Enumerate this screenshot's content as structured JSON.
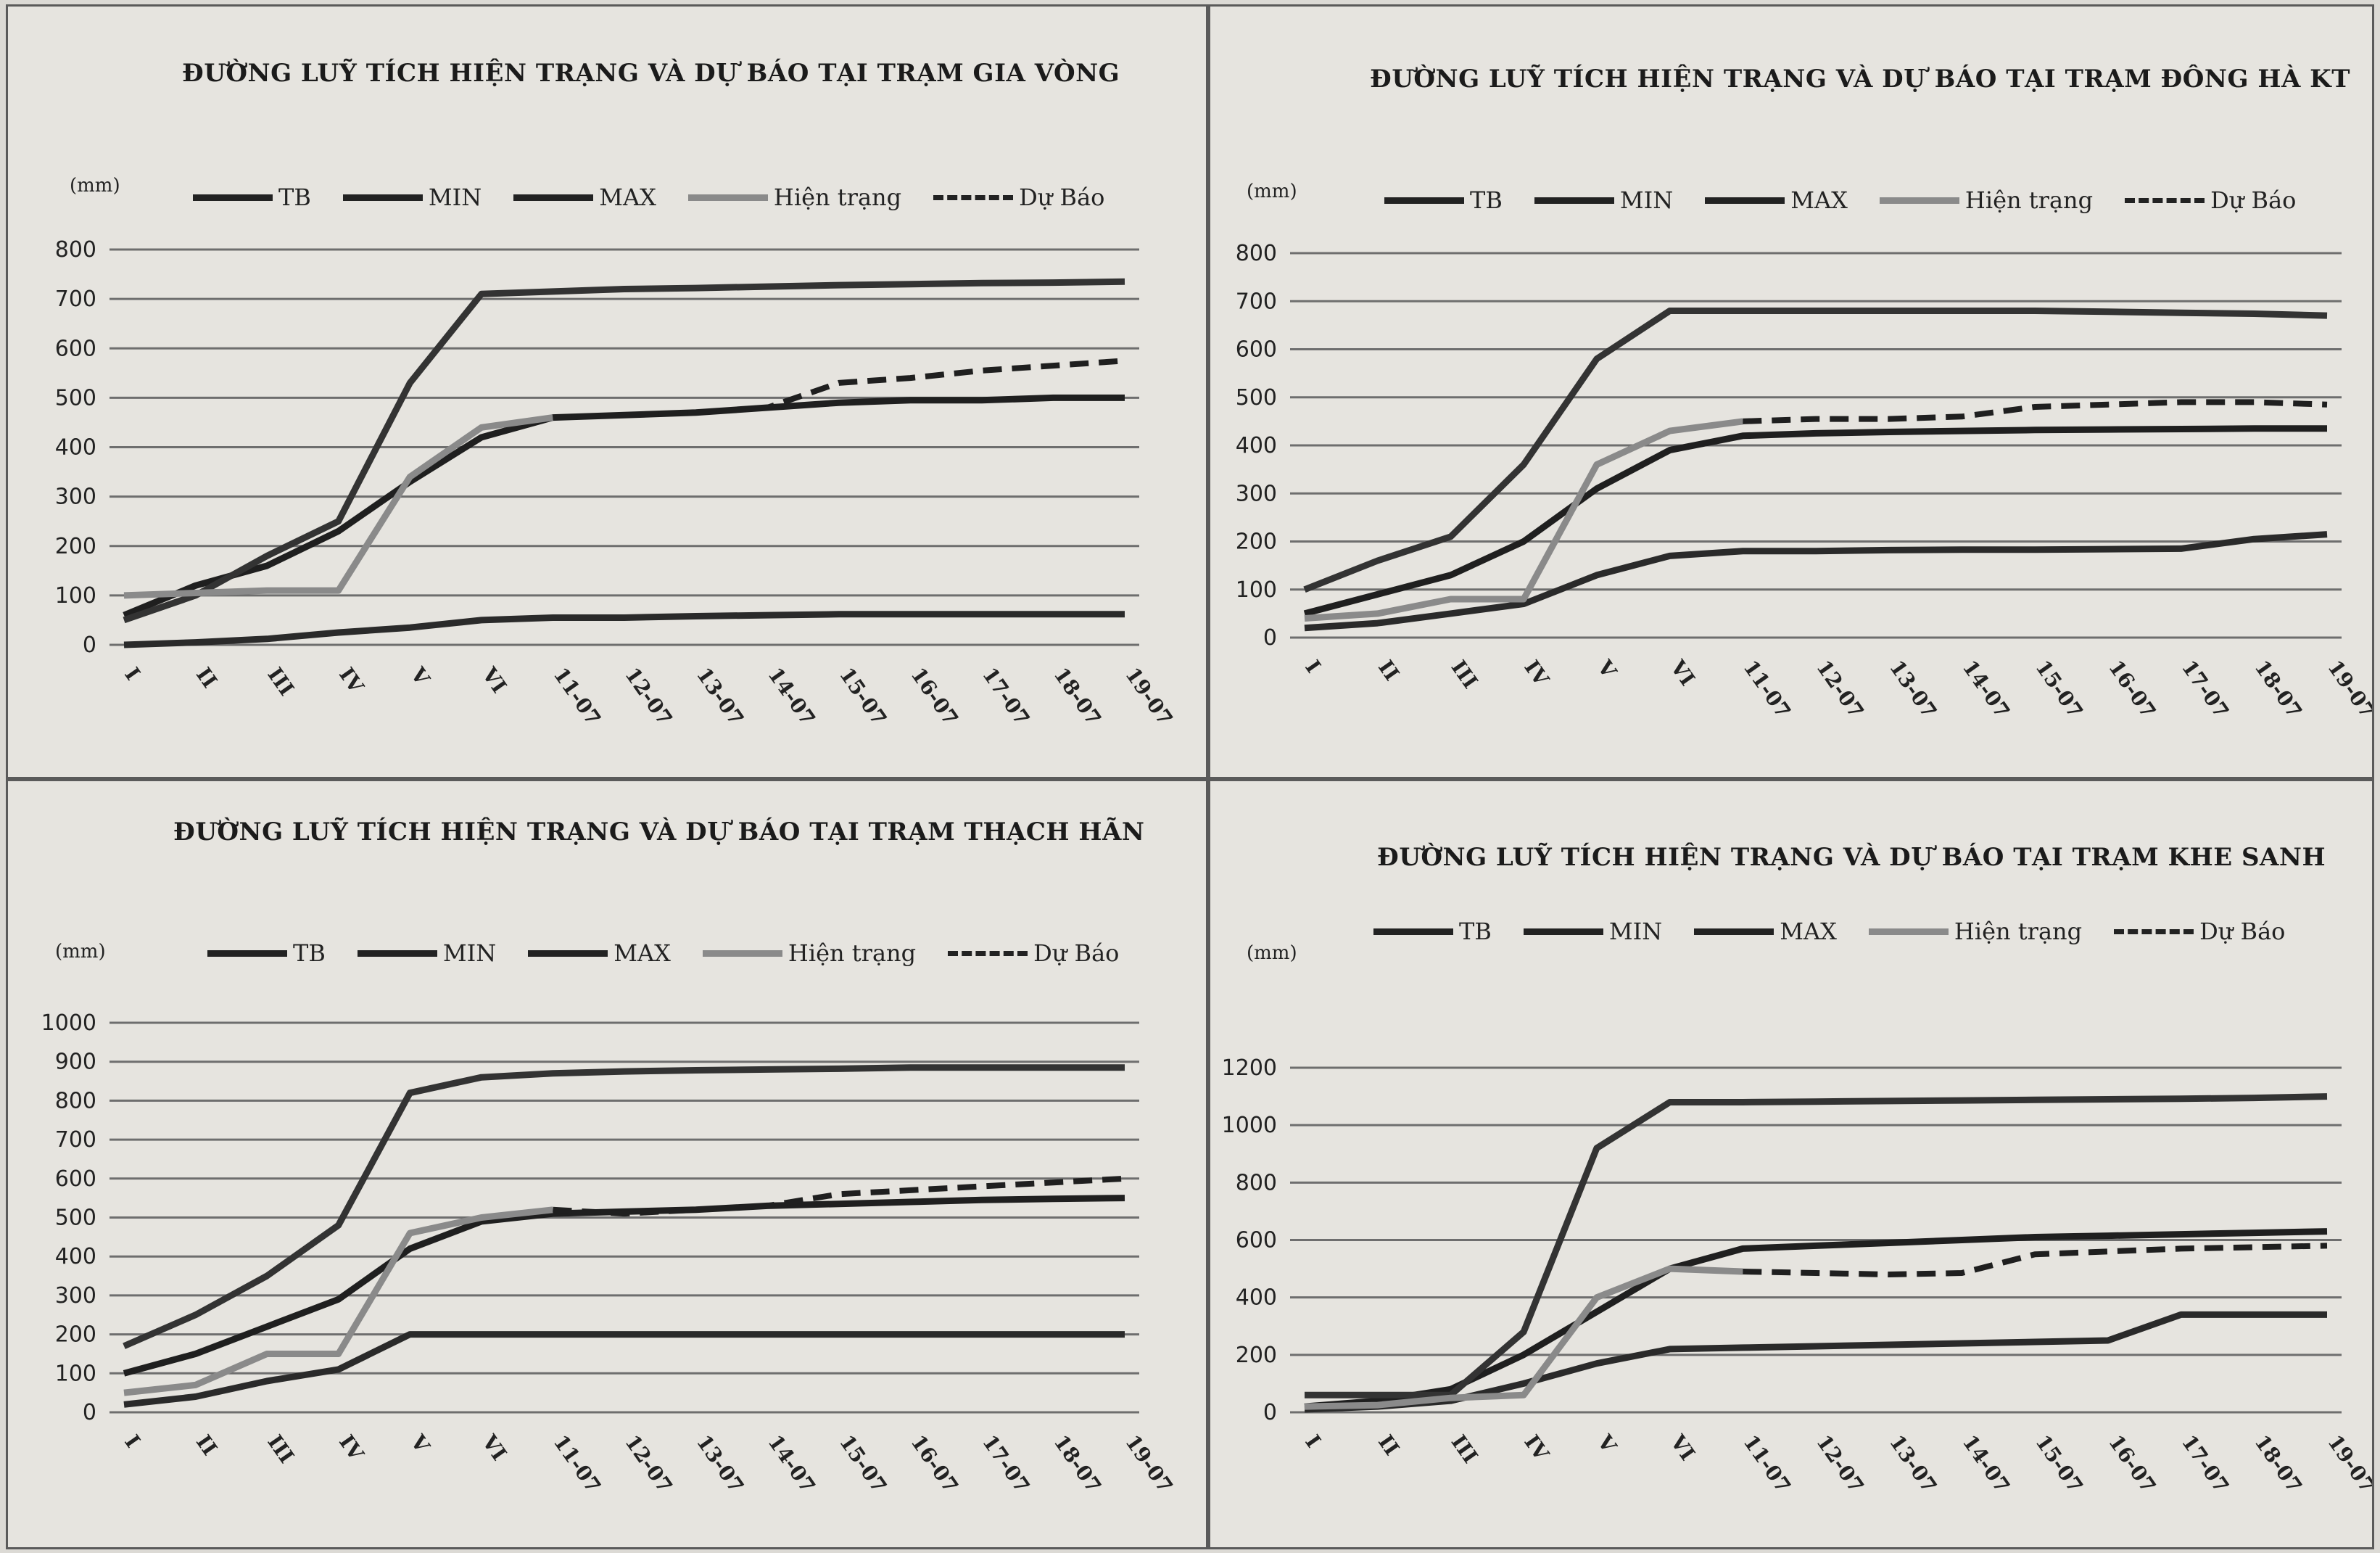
{
  "legend": [
    {
      "key": "tb",
      "label": "TB",
      "style": "solid",
      "color": "#1f1f1f"
    },
    {
      "key": "min",
      "label": "MIN",
      "style": "solid",
      "color": "#2a2a2a"
    },
    {
      "key": "max",
      "label": "MAX",
      "style": "solid",
      "color": "#333333"
    },
    {
      "key": "ht",
      "label": "Hiện trạng",
      "style": "solid",
      "color": "#8a8a8a"
    },
    {
      "key": "db",
      "label": "Dự Báo",
      "style": "dashed",
      "color": "#1f1f1f"
    }
  ],
  "chart_data": [
    {
      "type": "line",
      "title": "ĐƯỜNG LUỸ TÍCH HIỆN TRẠNG VÀ DỰ BÁO TẠI TRẠM GIA VÒNG",
      "ylabel": "(mm)",
      "ylim": [
        0,
        800
      ],
      "yticks": [
        0,
        100,
        200,
        300,
        400,
        500,
        600,
        700,
        800
      ],
      "categories": [
        "I",
        "II",
        "III",
        "IV",
        "V",
        "VI",
        "11-07",
        "12-07",
        "13-07",
        "14-07",
        "15-07",
        "16-07",
        "17-07",
        "18-07",
        "19-07"
      ],
      "series": [
        {
          "name": "TB",
          "values": [
            60,
            120,
            160,
            230,
            330,
            420,
            460,
            465,
            470,
            480,
            490,
            495,
            495,
            500,
            500
          ]
        },
        {
          "name": "MIN",
          "values": [
            0,
            5,
            12,
            25,
            35,
            50,
            55,
            55,
            58,
            60,
            62,
            62,
            62,
            62,
            62
          ]
        },
        {
          "name": "MAX",
          "values": [
            50,
            100,
            180,
            250,
            530,
            710,
            715,
            720,
            722,
            725,
            728,
            730,
            732,
            733,
            735
          ]
        },
        {
          "name": "Hiện trạng",
          "values": [
            100,
            105,
            110,
            110,
            340,
            440,
            460,
            null,
            null,
            null,
            null,
            null,
            null,
            null,
            null
          ]
        },
        {
          "name": "Dự Báo",
          "values": [
            null,
            null,
            null,
            null,
            null,
            null,
            460,
            465,
            470,
            480,
            530,
            540,
            555,
            565,
            575
          ]
        }
      ]
    },
    {
      "type": "line",
      "title": "ĐƯỜNG LUỸ TÍCH HIỆN TRẠNG VÀ DỰ BÁO TẠI TRẠM ĐÔNG HÀ KT",
      "ylabel": "(mm)",
      "ylim": [
        0,
        800
      ],
      "yticks": [
        0,
        100,
        200,
        300,
        400,
        500,
        600,
        700,
        800
      ],
      "categories": [
        "I",
        "II",
        "III",
        "IV",
        "V",
        "VI",
        "11-07",
        "12-07",
        "13-07",
        "14-07",
        "15-07",
        "16-07",
        "17-07",
        "18-07",
        "19-07"
      ],
      "series": [
        {
          "name": "TB",
          "values": [
            50,
            90,
            130,
            200,
            310,
            390,
            420,
            425,
            428,
            430,
            432,
            433,
            434,
            435,
            435
          ]
        },
        {
          "name": "MIN",
          "values": [
            20,
            30,
            50,
            70,
            130,
            170,
            180,
            180,
            182,
            183,
            183,
            184,
            185,
            205,
            215
          ]
        },
        {
          "name": "MAX",
          "values": [
            100,
            160,
            210,
            360,
            580,
            680,
            680,
            680,
            680,
            680,
            680,
            678,
            676,
            674,
            670
          ]
        },
        {
          "name": "Hiện trạng",
          "values": [
            40,
            50,
            80,
            80,
            360,
            430,
            450,
            null,
            null,
            null,
            null,
            null,
            null,
            null,
            null
          ]
        },
        {
          "name": "Dự Báo",
          "values": [
            null,
            null,
            null,
            null,
            null,
            null,
            450,
            455,
            455,
            460,
            480,
            485,
            490,
            490,
            485
          ]
        }
      ]
    },
    {
      "type": "line",
      "title": "ĐƯỜNG LUỸ TÍCH HIỆN TRẠNG VÀ DỰ BÁO TẠI TRẠM THẠCH HÃN",
      "ylabel": "(mm)",
      "ylim": [
        0,
        1000
      ],
      "yticks": [
        0,
        100,
        200,
        300,
        400,
        500,
        600,
        700,
        800,
        900,
        1000
      ],
      "categories": [
        "I",
        "II",
        "III",
        "IV",
        "V",
        "VI",
        "11-07",
        "12-07",
        "13-07",
        "14-07",
        "15-07",
        "16-07",
        "17-07",
        "18-07",
        "19-07"
      ],
      "series": [
        {
          "name": "TB",
          "values": [
            100,
            150,
            220,
            290,
            420,
            490,
            510,
            515,
            520,
            530,
            535,
            540,
            545,
            548,
            550
          ]
        },
        {
          "name": "MIN",
          "values": [
            20,
            40,
            80,
            110,
            200,
            200,
            200,
            200,
            200,
            200,
            200,
            200,
            200,
            200,
            200
          ]
        },
        {
          "name": "MAX",
          "values": [
            170,
            250,
            350,
            480,
            820,
            860,
            870,
            875,
            878,
            880,
            882,
            885,
            885,
            885,
            885
          ]
        },
        {
          "name": "Hiện trạng",
          "values": [
            50,
            70,
            150,
            150,
            460,
            500,
            520,
            null,
            null,
            null,
            null,
            null,
            null,
            null,
            null
          ]
        },
        {
          "name": "Dự Báo",
          "values": [
            null,
            null,
            null,
            null,
            null,
            null,
            520,
            510,
            520,
            530,
            560,
            570,
            580,
            590,
            600
          ]
        }
      ]
    },
    {
      "type": "line",
      "title": "ĐƯỜNG LUỸ TÍCH HIỆN TRẠNG VÀ DỰ BÁO TẠI TRẠM KHE SANH",
      "ylabel": "(mm)",
      "ylim": [
        0,
        1200
      ],
      "yticks": [
        0,
        200,
        400,
        600,
        800,
        1000,
        1200
      ],
      "categories": [
        "I",
        "II",
        "III",
        "IV",
        "V",
        "VI",
        "11-07",
        "12-07",
        "13-07",
        "14-07",
        "15-07",
        "16-07",
        "17-07",
        "18-07",
        "19-07"
      ],
      "series": [
        {
          "name": "TB",
          "values": [
            20,
            40,
            80,
            200,
            350,
            500,
            570,
            580,
            590,
            600,
            610,
            615,
            620,
            625,
            630
          ]
        },
        {
          "name": "MIN",
          "values": [
            10,
            20,
            40,
            100,
            170,
            220,
            225,
            230,
            235,
            240,
            245,
            250,
            340,
            340,
            340
          ]
        },
        {
          "name": "MAX",
          "values": [
            60,
            60,
            60,
            280,
            920,
            1080,
            1080,
            1082,
            1084,
            1086,
            1088,
            1090,
            1092,
            1095,
            1100
          ]
        },
        {
          "name": "Hiện trạng",
          "values": [
            20,
            25,
            50,
            60,
            400,
            500,
            490,
            null,
            null,
            null,
            null,
            null,
            null,
            null,
            null
          ]
        },
        {
          "name": "Dự Báo",
          "values": [
            null,
            null,
            null,
            null,
            null,
            null,
            490,
            485,
            480,
            485,
            550,
            560,
            570,
            575,
            580
          ]
        }
      ]
    }
  ]
}
